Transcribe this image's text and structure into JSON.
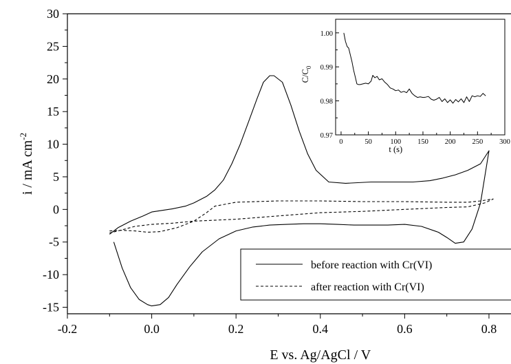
{
  "chart_data": [
    {
      "type": "line",
      "title": "",
      "xlabel": "E vs. Ag/AgCl  / V",
      "ylabel": "i / mA cm",
      "ylabel_sup": "-2",
      "xlim": [
        -0.2,
        0.88
      ],
      "ylim": [
        -16,
        30
      ],
      "xticks": [
        -0.2,
        0.0,
        0.2,
        0.4,
        0.6,
        0.8
      ],
      "xtick_labels": [
        "-0.2",
        "0.0",
        "0.2",
        "0.4",
        "0.6",
        "0.8"
      ],
      "yticks": [
        -15,
        -10,
        -5,
        0,
        5,
        10,
        15,
        20,
        25,
        30
      ],
      "ytick_labels": [
        "-15",
        "-10",
        "-5",
        "0",
        "5",
        "10",
        "15",
        "20",
        "25",
        "30"
      ],
      "grid": false,
      "legend_position": "bottom-right",
      "series": [
        {
          "name": "before reaction with Cr(VI)",
          "style": "solid",
          "x": [
            -0.09,
            -0.07,
            -0.05,
            -0.03,
            -0.01,
            0.0,
            0.02,
            0.04,
            0.06,
            0.09,
            0.12,
            0.16,
            0.2,
            0.24,
            0.28,
            0.32,
            0.36,
            0.4,
            0.44,
            0.48,
            0.52,
            0.56,
            0.6,
            0.64,
            0.68,
            0.7,
            0.72,
            0.74,
            0.76,
            0.78,
            0.8,
            0.78,
            0.75,
            0.72,
            0.69,
            0.66,
            0.62,
            0.58,
            0.52,
            0.46,
            0.42,
            0.39,
            0.37,
            0.35,
            0.33,
            0.31,
            0.29,
            0.28,
            0.265,
            0.25,
            0.23,
            0.21,
            0.19,
            0.17,
            0.15,
            0.13,
            0.1,
            0.08,
            0.05,
            0.02,
            0.0,
            -0.02,
            -0.05,
            -0.08,
            -0.1
          ],
          "y": [
            -5.0,
            -9.0,
            -12.0,
            -13.8,
            -14.6,
            -14.8,
            -14.6,
            -13.5,
            -11.5,
            -8.8,
            -6.5,
            -4.5,
            -3.3,
            -2.7,
            -2.4,
            -2.3,
            -2.2,
            -2.2,
            -2.3,
            -2.4,
            -2.4,
            -2.4,
            -2.3,
            -2.6,
            -3.5,
            -4.3,
            -5.2,
            -5.0,
            -3.0,
            1.0,
            9.0,
            7.0,
            6.0,
            5.3,
            4.8,
            4.4,
            4.2,
            4.2,
            4.2,
            4.0,
            4.2,
            6.0,
            8.5,
            12.0,
            16.0,
            19.5,
            20.5,
            20.5,
            19.5,
            17.0,
            13.5,
            10.0,
            7.0,
            4.5,
            3.0,
            2.0,
            1.0,
            0.5,
            0.1,
            -0.2,
            -0.4,
            -1.0,
            -1.8,
            -2.8,
            -3.8
          ]
        },
        {
          "name": "after reaction with Cr(VI)",
          "style": "dashed",
          "x": [
            -0.1,
            -0.07,
            -0.04,
            -0.01,
            0.02,
            0.06,
            0.1,
            0.13,
            0.15,
            0.2,
            0.3,
            0.4,
            0.5,
            0.6,
            0.7,
            0.75,
            0.78,
            0.8,
            0.81,
            0.79,
            0.75,
            0.7,
            0.6,
            0.5,
            0.4,
            0.3,
            0.2,
            0.1,
            0.05,
            0.0,
            -0.04,
            -0.08,
            -0.1
          ],
          "y": [
            -3.3,
            -3.2,
            -3.3,
            -3.5,
            -3.4,
            -2.8,
            -1.8,
            -0.5,
            0.5,
            1.1,
            1.3,
            1.3,
            1.2,
            1.2,
            1.1,
            1.1,
            1.3,
            1.5,
            1.6,
            1.0,
            0.4,
            0.3,
            0.0,
            -0.3,
            -0.5,
            -1.0,
            -1.5,
            -1.8,
            -2.1,
            -2.3,
            -2.6,
            -3.3,
            -3.6
          ]
        }
      ]
    },
    {
      "type": "line",
      "title": "",
      "xlabel": "t (s)",
      "ylabel": "C/C",
      "ylabel_sub": "0",
      "xlim": [
        -10,
        300
      ],
      "ylim": [
        0.97,
        1.004
      ],
      "xticks": [
        0,
        50,
        100,
        150,
        200,
        250,
        300
      ],
      "xtick_labels": [
        "0",
        "50",
        "100",
        "150",
        "200",
        "250",
        "300"
      ],
      "yticks": [
        0.97,
        0.98,
        0.99,
        1.0
      ],
      "ytick_labels": [
        "0.97",
        "0.98",
        "0.99",
        "1.00"
      ],
      "grid": false,
      "series": [
        {
          "style": "solid",
          "x": [
            5,
            8,
            11,
            14,
            17,
            20,
            23,
            26,
            29,
            32,
            35,
            40,
            45,
            50,
            55,
            58,
            62,
            66,
            70,
            75,
            80,
            85,
            90,
            95,
            100,
            105,
            110,
            115,
            120,
            125,
            130,
            135,
            140,
            145,
            150,
            155,
            160,
            165,
            170,
            175,
            180,
            185,
            190,
            195,
            200,
            205,
            210,
            215,
            220,
            225,
            230,
            235,
            240,
            245,
            250,
            255,
            260,
            265
          ],
          "y": [
            1.0,
            0.9975,
            0.996,
            0.9955,
            0.9935,
            0.9915,
            0.989,
            0.987,
            0.985,
            0.9848,
            0.9848,
            0.985,
            0.9852,
            0.985,
            0.9858,
            0.9875,
            0.9868,
            0.9872,
            0.9862,
            0.9865,
            0.9855,
            0.9848,
            0.9838,
            0.9835,
            0.983,
            0.9832,
            0.9825,
            0.9828,
            0.9824,
            0.9835,
            0.9822,
            0.9815,
            0.981,
            0.9812,
            0.981,
            0.9811,
            0.9813,
            0.9805,
            0.9802,
            0.9805,
            0.981,
            0.9798,
            0.9806,
            0.9795,
            0.9803,
            0.9793,
            0.9804,
            0.9797,
            0.9806,
            0.9795,
            0.9812,
            0.9798,
            0.9815,
            0.9812,
            0.9815,
            0.9813,
            0.9822,
            0.9815
          ]
        }
      ]
    }
  ],
  "legend": {
    "entries": [
      {
        "label": "before reaction with Cr(VI)",
        "style": "solid"
      },
      {
        "label": "after reaction with Cr(VI)",
        "style": "dashed"
      }
    ]
  }
}
